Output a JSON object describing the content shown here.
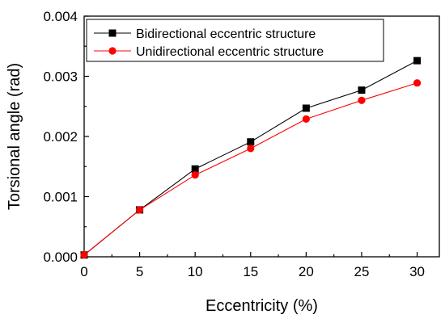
{
  "chart_data": {
    "type": "line",
    "xlabel": "Eccentricity (%)",
    "ylabel": "Torsional angle (rad)",
    "x": [
      0,
      5,
      10,
      15,
      20,
      25,
      30
    ],
    "xlim": [
      0,
      32
    ],
    "ylim": [
      0,
      0.004
    ],
    "x_ticks": [
      0,
      5,
      10,
      15,
      20,
      25,
      30
    ],
    "x_tick_labels": [
      "0",
      "5",
      "10",
      "15",
      "20",
      "25",
      "30"
    ],
    "y_ticks": [
      0,
      0.001,
      0.002,
      0.003,
      0.004
    ],
    "y_tick_labels": [
      "0.000",
      "0.001",
      "0.002",
      "0.003",
      "0.004"
    ],
    "grid": false,
    "legend_position": "top-left",
    "series": [
      {
        "name": "Bidirectional eccentric structure",
        "values": [
          3e-05,
          0.00078,
          0.00146,
          0.00191,
          0.00247,
          0.00277,
          0.00326
        ],
        "color": "#000000",
        "marker": "square"
      },
      {
        "name": "Unidirectional eccentric structure",
        "values": [
          3e-05,
          0.00078,
          0.00136,
          0.0018,
          0.00229,
          0.0026,
          0.00289
        ],
        "color": "#ff0000",
        "marker": "circle"
      }
    ]
  }
}
